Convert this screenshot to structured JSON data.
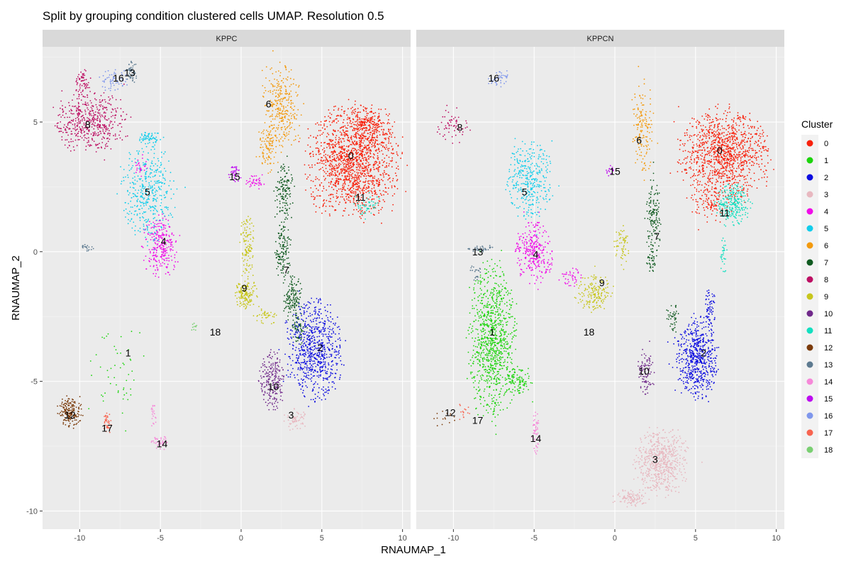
{
  "chart_data": {
    "type": "scatter",
    "title": "Split by grouping condition clustered cells UMAP. Resolution 0.5",
    "xlabel": "RNAUMAP_1",
    "ylabel": "RNAUMAP_2",
    "xlim": [
      -12.3,
      10.5
    ],
    "ylim": [
      -10.7,
      7.9
    ],
    "x_ticks": [
      -10,
      -5,
      0,
      5,
      10
    ],
    "y_ticks": [
      -10,
      -5,
      0,
      5
    ],
    "x_tick_labels": [
      "-10",
      "-5",
      "0",
      "5",
      "10"
    ],
    "y_tick_labels": [
      "-10",
      "-5",
      "0",
      "5"
    ],
    "grid": true,
    "legend": {
      "title": "Cluster",
      "position": "right"
    },
    "clusters": [
      {
        "id": "0",
        "color": "#F8210C"
      },
      {
        "id": "1",
        "color": "#1CD40C"
      },
      {
        "id": "2",
        "color": "#0C0CE0"
      },
      {
        "id": "3",
        "color": "#E8B8C0"
      },
      {
        "id": "4",
        "color": "#F00CE8"
      },
      {
        "id": "5",
        "color": "#12CDEB"
      },
      {
        "id": "6",
        "color": "#F39A0E"
      },
      {
        "id": "7",
        "color": "#105A20"
      },
      {
        "id": "8",
        "color": "#BD0F63"
      },
      {
        "id": "9",
        "color": "#C7C61C"
      },
      {
        "id": "10",
        "color": "#70298A"
      },
      {
        "id": "11",
        "color": "#13DFC0"
      },
      {
        "id": "12",
        "color": "#7B3B0B"
      },
      {
        "id": "13",
        "color": "#5D7A90"
      },
      {
        "id": "14",
        "color": "#F689D9"
      },
      {
        "id": "15",
        "color": "#BD0CF0"
      },
      {
        "id": "16",
        "color": "#7F97EC"
      },
      {
        "id": "17",
        "color": "#F86450"
      },
      {
        "id": "18",
        "color": "#7ACF72"
      }
    ],
    "panels": [
      {
        "name": "KPPC",
        "blobs": [
          {
            "c": "0",
            "x": 6.9,
            "y": 3.4,
            "rx": 2.4,
            "ry": 1.8,
            "n": 1400
          },
          {
            "c": "0",
            "x": 7.9,
            "y": 4.8,
            "rx": 1.2,
            "ry": 0.7,
            "n": 250
          },
          {
            "c": "6",
            "x": 2.5,
            "y": 5.6,
            "rx": 1.0,
            "ry": 1.4,
            "n": 300
          },
          {
            "c": "6",
            "x": 1.7,
            "y": 4.0,
            "rx": 0.5,
            "ry": 0.8,
            "n": 100
          },
          {
            "c": "11",
            "x": 7.8,
            "y": 1.8,
            "rx": 0.8,
            "ry": 0.4,
            "n": 50
          },
          {
            "c": "7",
            "x": 2.7,
            "y": 2.2,
            "rx": 0.5,
            "ry": 1.0,
            "n": 140
          },
          {
            "c": "7",
            "x": 2.6,
            "y": 0.0,
            "rx": 0.4,
            "ry": 0.9,
            "n": 130
          },
          {
            "c": "7",
            "x": 3.2,
            "y": -1.8,
            "rx": 0.5,
            "ry": 0.8,
            "n": 130
          },
          {
            "c": "7",
            "x": 3.6,
            "y": -3.0,
            "rx": 0.4,
            "ry": 0.5,
            "n": 60
          },
          {
            "c": "2",
            "x": 4.6,
            "y": -3.8,
            "rx": 1.5,
            "ry": 1.6,
            "n": 700
          },
          {
            "c": "10",
            "x": 1.9,
            "y": -5.0,
            "rx": 0.7,
            "ry": 1.0,
            "n": 220
          },
          {
            "c": "3",
            "x": 3.4,
            "y": -6.5,
            "rx": 0.7,
            "ry": 0.4,
            "n": 60
          },
          {
            "c": "9",
            "x": 0.3,
            "y": -1.6,
            "rx": 0.6,
            "ry": 0.5,
            "n": 150
          },
          {
            "c": "9",
            "x": 0.4,
            "y": 0.3,
            "rx": 0.4,
            "ry": 1.0,
            "n": 110
          },
          {
            "c": "9",
            "x": 1.5,
            "y": -2.5,
            "rx": 0.6,
            "ry": 0.3,
            "n": 40
          },
          {
            "c": "15",
            "x": -0.4,
            "y": 3.0,
            "rx": 0.35,
            "ry": 0.25,
            "n": 40
          },
          {
            "c": "4",
            "x": 0.9,
            "y": 2.7,
            "rx": 0.5,
            "ry": 0.3,
            "n": 40
          },
          {
            "c": "4",
            "x": -5.0,
            "y": 0.2,
            "rx": 0.9,
            "ry": 1.0,
            "n": 260
          },
          {
            "c": "4",
            "x": -6.2,
            "y": 3.3,
            "rx": 0.3,
            "ry": 0.4,
            "n": 30
          },
          {
            "c": "5",
            "x": -5.8,
            "y": 2.3,
            "rx": 1.4,
            "ry": 1.6,
            "n": 400
          },
          {
            "c": "5",
            "x": -5.7,
            "y": 4.4,
            "rx": 0.6,
            "ry": 0.2,
            "n": 60
          },
          {
            "c": "8",
            "x": -9.3,
            "y": 5.0,
            "rx": 1.8,
            "ry": 1.0,
            "n": 500
          },
          {
            "c": "8",
            "x": -9.8,
            "y": 6.5,
            "rx": 0.4,
            "ry": 0.5,
            "n": 60
          },
          {
            "c": "16",
            "x": -7.9,
            "y": 6.6,
            "rx": 0.8,
            "ry": 0.4,
            "n": 60
          },
          {
            "c": "13",
            "x": -6.8,
            "y": 6.9,
            "rx": 0.3,
            "ry": 0.4,
            "n": 50
          },
          {
            "c": "13",
            "x": -9.6,
            "y": 0.15,
            "rx": 0.4,
            "ry": 0.1,
            "n": 20
          },
          {
            "c": "12",
            "x": -10.6,
            "y": -6.2,
            "rx": 0.6,
            "ry": 0.5,
            "n": 180
          },
          {
            "c": "17",
            "x": -8.3,
            "y": -6.6,
            "rx": 0.2,
            "ry": 0.4,
            "n": 40
          },
          {
            "c": "14",
            "x": -5.0,
            "y": -7.3,
            "rx": 0.5,
            "ry": 0.3,
            "n": 40
          },
          {
            "c": "14",
            "x": -5.4,
            "y": -6.2,
            "rx": 0.2,
            "ry": 0.5,
            "n": 20
          },
          {
            "c": "1",
            "x": -7.5,
            "y": -4.5,
            "rx": 1.5,
            "ry": 1.5,
            "n": 50
          },
          {
            "c": "18",
            "x": -2.9,
            "y": -2.9,
            "rx": 0.2,
            "ry": 0.15,
            "n": 10
          }
        ],
        "labels": [
          {
            "text": "0",
            "x": 6.8,
            "y": 3.7
          },
          {
            "text": "6",
            "x": 1.7,
            "y": 5.7
          },
          {
            "text": "11",
            "x": 7.4,
            "y": 2.1
          },
          {
            "text": "15",
            "x": -0.4,
            "y": 2.9
          },
          {
            "text": "5",
            "x": -5.8,
            "y": 2.3
          },
          {
            "text": "8",
            "x": -9.5,
            "y": 4.9
          },
          {
            "text": "16",
            "x": -7.6,
            "y": 6.7
          },
          {
            "text": "13",
            "x": -6.9,
            "y": 6.9
          },
          {
            "text": "4",
            "x": -4.8,
            "y": 0.4
          },
          {
            "text": "7",
            "x": 2.8,
            "y": -0.7
          },
          {
            "text": "9",
            "x": 0.2,
            "y": -1.4
          },
          {
            "text": "18",
            "x": -1.6,
            "y": -3.1
          },
          {
            "text": "2",
            "x": 4.9,
            "y": -3.7
          },
          {
            "text": "1",
            "x": -7.0,
            "y": -3.9
          },
          {
            "text": "10",
            "x": 2.0,
            "y": -5.2
          },
          {
            "text": "3",
            "x": 3.1,
            "y": -6.3
          },
          {
            "text": "12",
            "x": -10.6,
            "y": -6.3
          },
          {
            "text": "17",
            "x": -8.3,
            "y": -6.8
          },
          {
            "text": "14",
            "x": -4.9,
            "y": -7.4
          }
        ]
      },
      {
        "name": "KPPCN",
        "blobs": [
          {
            "c": "0",
            "x": 6.8,
            "y": 3.8,
            "rx": 2.3,
            "ry": 1.5,
            "n": 1100
          },
          {
            "c": "0",
            "x": 6.0,
            "y": 2.0,
            "rx": 1.2,
            "ry": 0.8,
            "n": 120
          },
          {
            "c": "6",
            "x": 1.7,
            "y": 4.8,
            "rx": 0.6,
            "ry": 1.6,
            "n": 150
          },
          {
            "c": "11",
            "x": 7.3,
            "y": 1.8,
            "rx": 0.9,
            "ry": 0.7,
            "n": 250
          },
          {
            "c": "11",
            "x": 6.7,
            "y": -0.1,
            "rx": 0.2,
            "ry": 0.6,
            "n": 30
          },
          {
            "c": "7",
            "x": 2.4,
            "y": 1.5,
            "rx": 0.4,
            "ry": 1.3,
            "n": 130
          },
          {
            "c": "7",
            "x": 2.3,
            "y": -0.3,
            "rx": 0.3,
            "ry": 0.5,
            "n": 40
          },
          {
            "c": "7",
            "x": 3.6,
            "y": -2.6,
            "rx": 0.4,
            "ry": 0.5,
            "n": 40
          },
          {
            "c": "2",
            "x": 5.1,
            "y": -4.1,
            "rx": 1.1,
            "ry": 1.3,
            "n": 600
          },
          {
            "c": "2",
            "x": 5.9,
            "y": -2.2,
            "rx": 0.3,
            "ry": 0.6,
            "n": 60
          },
          {
            "c": "10",
            "x": 1.9,
            "y": -4.6,
            "rx": 0.4,
            "ry": 0.8,
            "n": 90
          },
          {
            "c": "3",
            "x": 2.9,
            "y": -8.1,
            "rx": 1.4,
            "ry": 1.1,
            "n": 600
          },
          {
            "c": "3",
            "x": 1.0,
            "y": -9.5,
            "rx": 1.0,
            "ry": 0.3,
            "n": 100
          },
          {
            "c": "9",
            "x": -1.3,
            "y": -1.6,
            "rx": 1.0,
            "ry": 0.6,
            "n": 170
          },
          {
            "c": "9",
            "x": 0.4,
            "y": 0.2,
            "rx": 0.4,
            "ry": 0.7,
            "n": 60
          },
          {
            "c": "15",
            "x": -0.2,
            "y": 3.1,
            "rx": 0.3,
            "ry": 0.2,
            "n": 15
          },
          {
            "c": "4",
            "x": -5.0,
            "y": 0.0,
            "rx": 1.0,
            "ry": 1.0,
            "n": 300
          },
          {
            "c": "4",
            "x": -2.6,
            "y": -1.0,
            "rx": 0.6,
            "ry": 0.3,
            "n": 40
          },
          {
            "c": "5",
            "x": -5.3,
            "y": 2.8,
            "rx": 1.2,
            "ry": 1.3,
            "n": 350
          },
          {
            "c": "8",
            "x": -10.0,
            "y": 4.9,
            "rx": 0.9,
            "ry": 0.7,
            "n": 60
          },
          {
            "c": "16",
            "x": -7.2,
            "y": 6.7,
            "rx": 0.6,
            "ry": 0.3,
            "n": 40
          },
          {
            "c": "13",
            "x": -8.3,
            "y": 0.1,
            "rx": 0.8,
            "ry": 0.1,
            "n": 40
          },
          {
            "c": "13",
            "x": -8.6,
            "y": -0.8,
            "rx": 0.3,
            "ry": 0.3,
            "n": 20
          },
          {
            "c": "1",
            "x": -7.6,
            "y": -3.4,
            "rx": 1.2,
            "ry": 2.5,
            "n": 900
          },
          {
            "c": "1",
            "x": -6.0,
            "y": -5.0,
            "rx": 0.7,
            "ry": 0.5,
            "n": 100
          },
          {
            "c": "12",
            "x": -10.6,
            "y": -6.4,
            "rx": 0.6,
            "ry": 0.3,
            "n": 15
          },
          {
            "c": "17",
            "x": -9.3,
            "y": -6.2,
            "rx": 0.5,
            "ry": 0.3,
            "n": 15
          },
          {
            "c": "14",
            "x": -4.9,
            "y": -7.0,
            "rx": 0.2,
            "ry": 0.7,
            "n": 50
          }
        ],
        "labels": [
          {
            "text": "0",
            "x": 6.5,
            "y": 3.9
          },
          {
            "text": "6",
            "x": 1.5,
            "y": 4.3
          },
          {
            "text": "11",
            "x": 6.8,
            "y": 1.5
          },
          {
            "text": "15",
            "x": 0.0,
            "y": 3.1
          },
          {
            "text": "5",
            "x": -5.6,
            "y": 2.3
          },
          {
            "text": "8",
            "x": -9.6,
            "y": 4.8
          },
          {
            "text": "16",
            "x": -7.5,
            "y": 6.7
          },
          {
            "text": "13",
            "x": -8.5,
            "y": 0.0
          },
          {
            "text": "4",
            "x": -4.9,
            "y": -0.1
          },
          {
            "text": "7",
            "x": 2.6,
            "y": 0.6
          },
          {
            "text": "9",
            "x": -0.8,
            "y": -1.2
          },
          {
            "text": "18",
            "x": -1.6,
            "y": -3.1
          },
          {
            "text": "2",
            "x": 5.5,
            "y": -3.9
          },
          {
            "text": "1",
            "x": -7.6,
            "y": -3.1
          },
          {
            "text": "10",
            "x": 1.8,
            "y": -4.6
          },
          {
            "text": "3",
            "x": 2.5,
            "y": -8.0
          },
          {
            "text": "12",
            "x": -10.2,
            "y": -6.2
          },
          {
            "text": "17",
            "x": -8.5,
            "y": -6.5
          },
          {
            "text": "14",
            "x": -4.9,
            "y": -7.2
          }
        ]
      }
    ]
  }
}
